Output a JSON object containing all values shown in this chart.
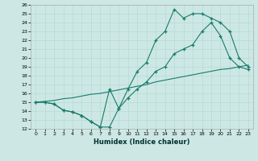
{
  "background_color": "#cde8e4",
  "grid_color": "#b0d8d0",
  "line_color": "#1a7a6a",
  "xlim": [
    -0.5,
    23.5
  ],
  "ylim": [
    12,
    26
  ],
  "xlabel": "Humidex (Indice chaleur)",
  "xticks": [
    0,
    1,
    2,
    3,
    4,
    5,
    6,
    7,
    8,
    9,
    10,
    11,
    12,
    13,
    14,
    15,
    16,
    17,
    18,
    19,
    20,
    21,
    22,
    23
  ],
  "yticks": [
    12,
    13,
    14,
    15,
    16,
    17,
    18,
    19,
    20,
    21,
    22,
    23,
    24,
    25,
    26
  ],
  "line1_x": [
    0,
    1,
    2,
    3,
    4,
    5,
    6,
    7,
    8,
    9,
    10,
    11,
    12,
    13,
    14,
    15,
    16,
    17,
    18,
    19,
    20,
    21,
    22,
    23
  ],
  "line1_y": [
    15.0,
    15.0,
    14.8,
    14.1,
    13.9,
    13.5,
    12.8,
    12.2,
    12.2,
    14.3,
    15.5,
    16.5,
    17.3,
    18.5,
    19.0,
    20.5,
    21.0,
    21.5,
    23.0,
    24.0,
    22.5,
    20.0,
    19.0,
    18.7
  ],
  "line2_x": [
    0,
    1,
    2,
    3,
    4,
    5,
    6,
    7,
    8,
    9,
    10,
    11,
    12,
    13,
    14,
    15,
    16,
    17,
    18,
    19,
    20,
    21,
    22,
    23
  ],
  "line2_y": [
    15.0,
    15.0,
    14.8,
    14.1,
    13.9,
    13.5,
    12.8,
    12.2,
    16.5,
    14.3,
    16.5,
    18.5,
    19.5,
    22.0,
    23.0,
    25.5,
    24.5,
    25.0,
    25.0,
    24.5,
    24.0,
    23.0,
    20.0,
    19.0
  ],
  "line3_x": [
    0,
    1,
    2,
    3,
    4,
    5,
    6,
    7,
    8,
    9,
    10,
    11,
    12,
    13,
    14,
    15,
    16,
    17,
    18,
    19,
    20,
    21,
    22,
    23
  ],
  "line3_y": [
    15.0,
    15.1,
    15.2,
    15.4,
    15.5,
    15.7,
    15.9,
    16.0,
    16.2,
    16.4,
    16.6,
    16.8,
    17.0,
    17.3,
    17.5,
    17.7,
    17.9,
    18.1,
    18.3,
    18.5,
    18.7,
    18.8,
    19.0,
    19.2
  ]
}
